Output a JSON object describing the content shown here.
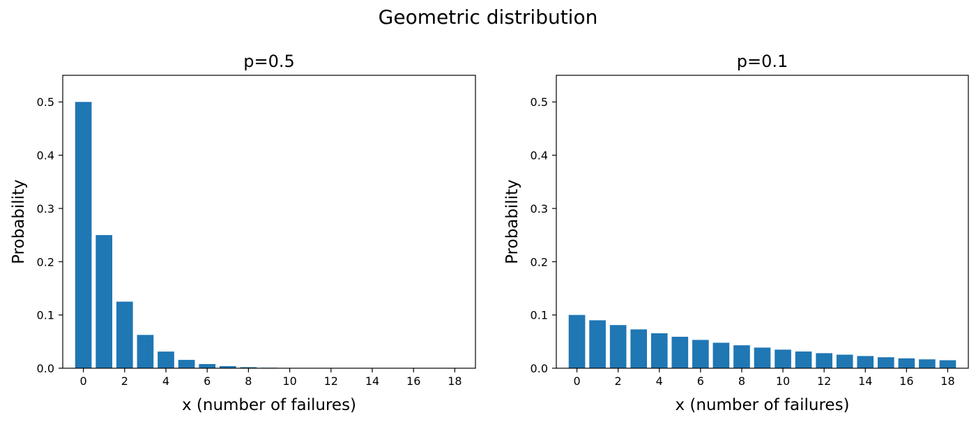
{
  "suptitle": "Geometric distribution",
  "bar_color": "#1f77b4",
  "chart_data": [
    {
      "type": "bar",
      "title": "p=0.5",
      "xlabel": "x (number of failures)",
      "ylabel": "Probability",
      "x": [
        0,
        1,
        2,
        3,
        4,
        5,
        6,
        7,
        8,
        9,
        10,
        11,
        12,
        13,
        14,
        15,
        16,
        17,
        18
      ],
      "values": [
        0.5,
        0.25,
        0.125,
        0.0625,
        0.03125,
        0.015625,
        0.0078125,
        0.00390625,
        0.001953125,
        0.0009765625,
        0.00048828125,
        0.000244140625,
        0.0001220703125,
        6.103515625e-05,
        3.0517578125e-05,
        1.52587890625e-05,
        7.62939453125e-06,
        3.814697265625e-06,
        1.9073486328125e-06
      ],
      "xlim": [
        -1,
        19
      ],
      "ylim": [
        0,
        0.55
      ],
      "xticks": [
        0,
        2,
        4,
        6,
        8,
        10,
        12,
        14,
        16,
        18
      ],
      "xtick_labels": [
        "0",
        "2",
        "4",
        "6",
        "8",
        "10",
        "12",
        "14",
        "16",
        "18"
      ],
      "yticks": [
        0.0,
        0.1,
        0.2,
        0.3,
        0.4,
        0.5
      ],
      "ytick_labels": [
        "0.0",
        "0.1",
        "0.2",
        "0.3",
        "0.4",
        "0.5"
      ],
      "grid": false
    },
    {
      "type": "bar",
      "title": "p=0.1",
      "xlabel": "x (number of failures)",
      "ylabel": "Probability",
      "x": [
        0,
        1,
        2,
        3,
        4,
        5,
        6,
        7,
        8,
        9,
        10,
        11,
        12,
        13,
        14,
        15,
        16,
        17,
        18
      ],
      "values": [
        0.1,
        0.09,
        0.081,
        0.0729,
        0.06561,
        0.059049,
        0.0531441,
        0.04782969,
        0.043046721,
        0.0387420489,
        0.03486784401,
        0.031381059609,
        0.0282429536481,
        0.02541865828329,
        0.022876792454961,
        0.0205891132094649,
        0.01853020188851841,
        0.01667718169966657,
        0.015009463529699911
      ],
      "xlim": [
        -1,
        19
      ],
      "ylim": [
        0,
        0.55
      ],
      "xticks": [
        0,
        2,
        4,
        6,
        8,
        10,
        12,
        14,
        16,
        18
      ],
      "xtick_labels": [
        "0",
        "2",
        "4",
        "6",
        "8",
        "10",
        "12",
        "14",
        "16",
        "18"
      ],
      "yticks": [
        0.0,
        0.1,
        0.2,
        0.3,
        0.4,
        0.5
      ],
      "ytick_labels": [
        "0.0",
        "0.1",
        "0.2",
        "0.3",
        "0.4",
        "0.5"
      ],
      "grid": false
    }
  ]
}
